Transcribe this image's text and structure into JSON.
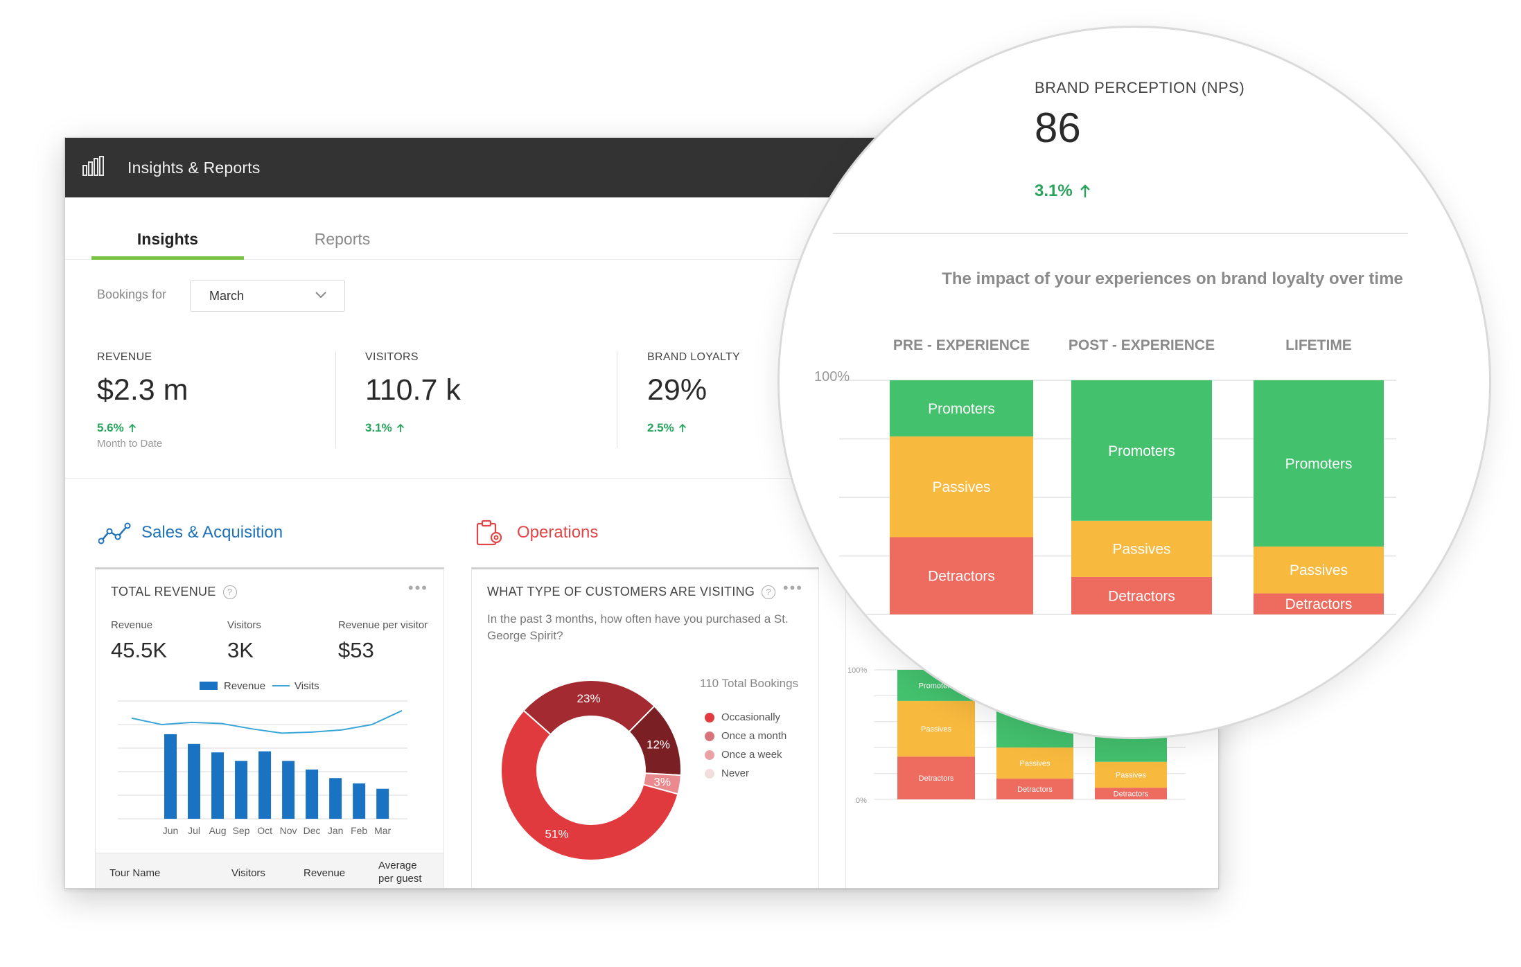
{
  "app": {
    "title": "Insights & Reports",
    "icon": "bar-chart-icon"
  },
  "tabs": [
    {
      "label": "Insights",
      "active": true
    },
    {
      "label": "Reports",
      "active": false
    }
  ],
  "filter": {
    "label": "Bookings for",
    "value": "March"
  },
  "kpis": [
    {
      "label": "REVENUE",
      "value": "$2.3 m",
      "delta": "5.6%",
      "note": "Month to Date"
    },
    {
      "label": "VISITORS",
      "value": "110.7 k",
      "delta": "3.1%"
    },
    {
      "label": "BRAND LOYALTY",
      "value": "29%",
      "delta": "2.5%"
    }
  ],
  "sections": {
    "sales": "Sales & Acquisition",
    "operations": "Operations"
  },
  "revenue_card": {
    "title": "TOTAL REVENUE",
    "help": "?",
    "metrics": [
      {
        "label": "Revenue",
        "value": "45.5K"
      },
      {
        "label": "Visitors",
        "value": "3K"
      },
      {
        "label": "Revenue per visitor",
        "value": "$53"
      }
    ],
    "table_headers": [
      "Tour Name",
      "Visitors",
      "Revenue",
      "Average per guest"
    ]
  },
  "customers_card": {
    "title": "WHAT TYPE OF CUSTOMERS ARE VISITING",
    "help": "?",
    "question": "In the past 3 months, how often have you purchased a St. George Spirit?",
    "total": "110 Total Bookings",
    "legend": [
      {
        "label": "Occasionally",
        "color": "#e0393e"
      },
      {
        "label": "Once a month",
        "color": "#d9747a"
      },
      {
        "label": "Once a week",
        "color": "#eba2a6"
      },
      {
        "label": "Never",
        "color": "#f1dcde"
      }
    ]
  },
  "nps": {
    "label": "BRAND PERCEPTION (NPS)",
    "value": "86",
    "delta": "3.1%",
    "caption": "The impact of your experiences on brand loyalty over time"
  },
  "colors": {
    "promoters": "#43c16d",
    "passives": "#f7b93e",
    "detractors": "#ed6b5f",
    "revenue_bar": "#1a73c2",
    "visits_line": "#3aa6d8",
    "positive": "#27a35c"
  },
  "chart_data": [
    {
      "type": "bar",
      "title": "TOTAL REVENUE",
      "categories": [
        "Jun",
        "Jul",
        "Aug",
        "Sep",
        "Oct",
        "Nov",
        "Dec",
        "Jan",
        "Feb",
        "Mar"
      ],
      "series": [
        {
          "name": "Revenue",
          "type": "bar",
          "values": [
            79,
            70,
            62,
            54,
            63,
            54,
            46,
            38,
            33,
            28
          ]
        },
        {
          "name": "Visits",
          "type": "line",
          "values": [
            94,
            88,
            90,
            89,
            84,
            80,
            81,
            83,
            88,
            101
          ]
        }
      ],
      "ylim": [
        0,
        110
      ],
      "grid": true,
      "legend": "top"
    },
    {
      "type": "pie",
      "variant": "donut",
      "slices": [
        {
          "label": "Occasionally",
          "value": 51,
          "text": "51%",
          "color": "#e0393e"
        },
        {
          "label": "23%",
          "value": 23,
          "text": "23%",
          "color": "#a32a30"
        },
        {
          "label": "12%",
          "value": 12,
          "text": "12%",
          "color": "#7a1f24"
        },
        {
          "label": "3%",
          "value": 3,
          "text": "3%",
          "color": "#eb8a8e"
        }
      ]
    },
    {
      "type": "bar",
      "stacked": true,
      "title": "The impact of your experiences on brand loyalty over time",
      "categories": [
        "PRE - EXPERIENCE",
        "POST - EXPERIENCE",
        "LIFETIME"
      ],
      "series": [
        {
          "name": "Detractors",
          "values": [
            33,
            16,
            9
          ]
        },
        {
          "name": "Passives",
          "values": [
            43,
            24,
            20
          ]
        },
        {
          "name": "Promoters",
          "values": [
            24,
            60,
            71
          ]
        }
      ],
      "ylabel": "",
      "y_tick": "100%",
      "ylim": [
        0,
        100
      ],
      "grid": true
    },
    {
      "type": "bar",
      "stacked": true,
      "categories": [
        "PRE -",
        "",
        ""
      ],
      "series": [
        {
          "name": "Detractors",
          "values": [
            33,
            16,
            9
          ]
        },
        {
          "name": "Passives",
          "values": [
            43,
            24,
            20
          ]
        },
        {
          "name": "Promoters",
          "values": [
            24,
            60,
            71
          ]
        }
      ],
      "y_ticks": [
        "100%",
        "0%"
      ],
      "ylim": [
        0,
        100
      ],
      "grid": true
    }
  ]
}
